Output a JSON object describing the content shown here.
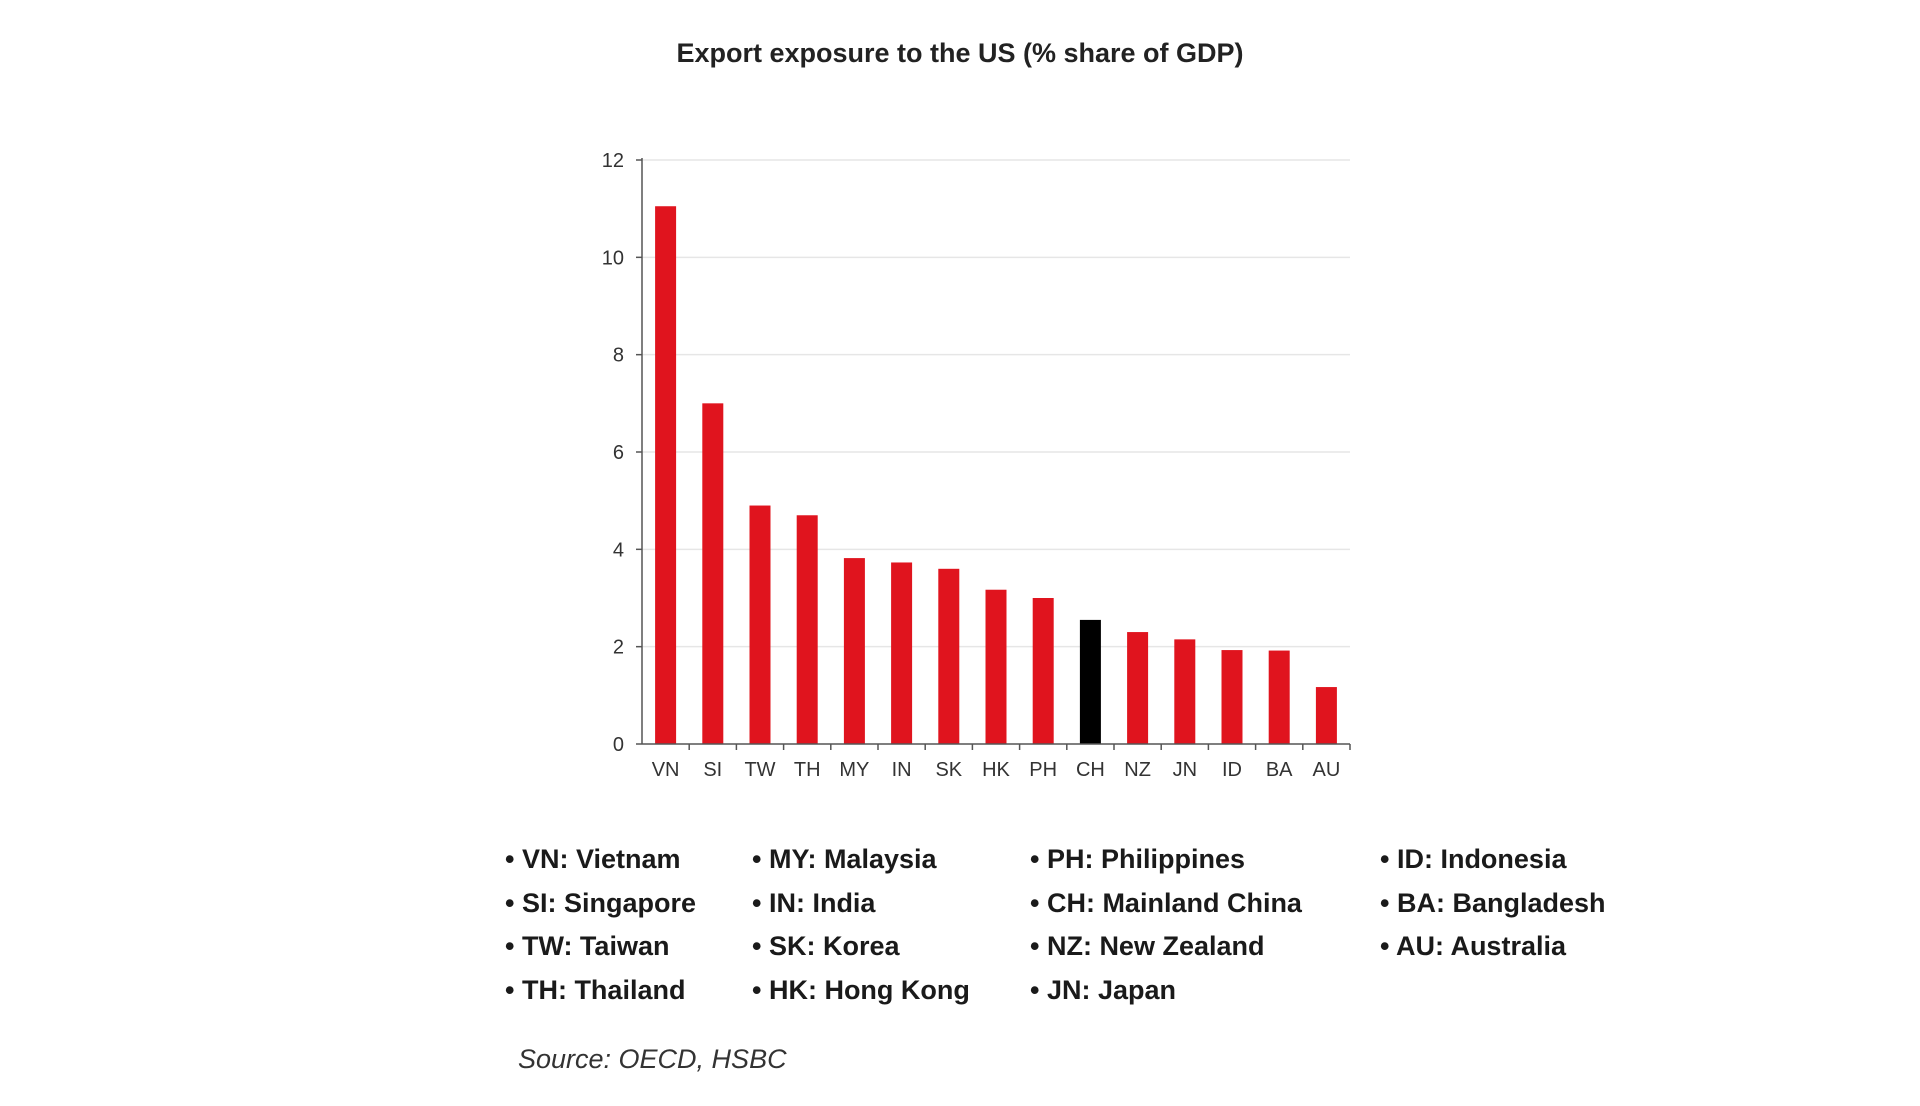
{
  "chart_data": {
    "type": "bar",
    "title": "Export exposure to the US (% share of GDP)",
    "xlabel": "",
    "ylabel": "",
    "categories": [
      "VN",
      "SI",
      "TW",
      "TH",
      "MY",
      "IN",
      "SK",
      "HK",
      "PH",
      "CH",
      "NZ",
      "JN",
      "ID",
      "BA",
      "AU"
    ],
    "values": [
      11.05,
      7.0,
      4.9,
      4.7,
      3.82,
      3.73,
      3.6,
      3.17,
      3.0,
      2.55,
      2.3,
      2.15,
      1.93,
      1.92,
      1.17
    ],
    "highlight": "CH",
    "ylim": [
      0,
      12
    ],
    "yticks": [
      "0",
      "2",
      "4",
      "6",
      "8",
      "10",
      "12"
    ],
    "grid": true,
    "colors": {
      "bar": "#e0141e",
      "highlight": "#000000",
      "grid": "#e6e6e6",
      "axis": "#555555"
    }
  },
  "legend": {
    "columns": [
      [
        "• VN: Vietnam",
        "• SI: Singapore",
        "• TW: Taiwan",
        "• TH: Thailand"
      ],
      [
        "• MY: Malaysia",
        "• IN: India",
        "• SK: Korea",
        "• HK: Hong Kong"
      ],
      [
        "• PH: Philippines",
        "• CH: Mainland China",
        "• NZ: New Zealand",
        "• JN: Japan"
      ],
      [
        "• ID: Indonesia",
        "• BA: Bangladesh",
        "• AU: Australia"
      ]
    ]
  },
  "source": "Source: OECD, HSBC"
}
